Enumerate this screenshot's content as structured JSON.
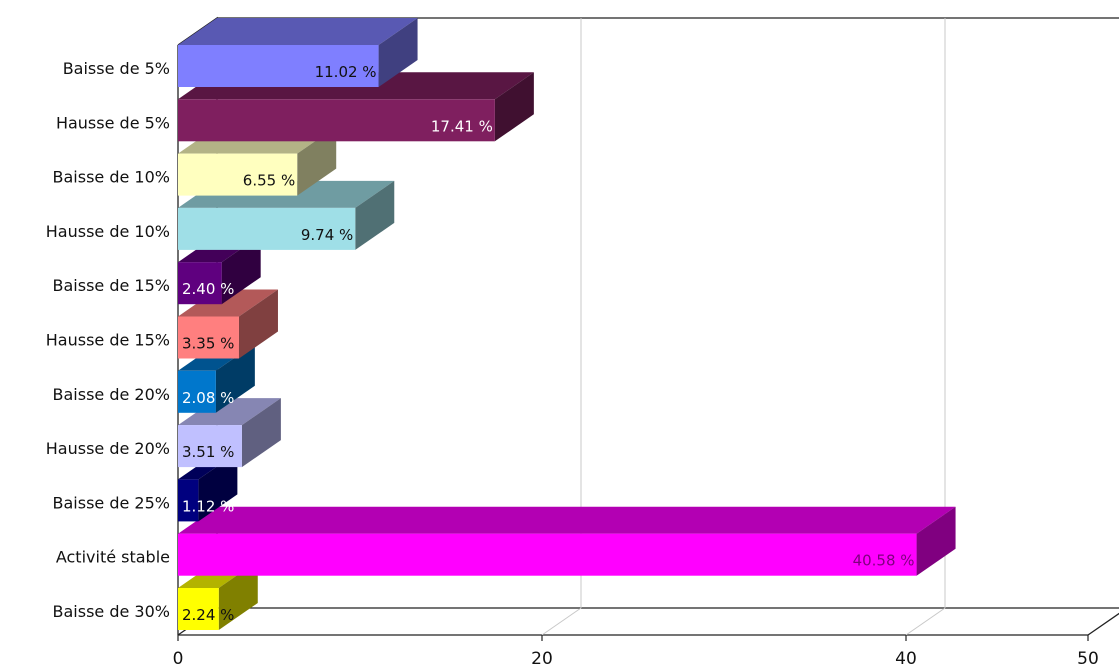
{
  "chart_data": {
    "type": "bar",
    "orientation": "horizontal",
    "style": "3d",
    "title": "",
    "xlabel": "",
    "ylabel": "",
    "xlim": [
      0,
      50
    ],
    "x_ticks": [
      "0",
      "20",
      "40",
      "50"
    ],
    "grid": true,
    "legend": "none",
    "categories": [
      "Baisse de 5%",
      "Hausse de 5%",
      "Baisse de 10%",
      "Hausse de 10%",
      "Baisse de 15%",
      "Hausse de 15%",
      "Baisse de 20%",
      "Hausse de 20%",
      "Baisse de 25%",
      "Activité stable",
      "Baisse de 30%"
    ],
    "values": [
      11.02,
      17.41,
      6.55,
      9.74,
      2.4,
      3.35,
      2.08,
      3.51,
      1.12,
      40.58,
      2.24
    ],
    "value_labels": [
      "11.02 %",
      "17.41 %",
      "6.55 %",
      "9.74 %",
      "2.40 %",
      "3.35 %",
      "2.08 %",
      "3.51 %",
      "1.12 %",
      "40.58 %",
      "2.24 %"
    ],
    "colors": [
      "#7f7fff",
      "#7f1f5f",
      "#ffffbf",
      "#9fdfe7",
      "#5f007f",
      "#ff7f7f",
      "#0077cc",
      "#c0c0ff",
      "#00007f",
      "#ff00ff",
      "#ffff00"
    ],
    "label_colors": [
      "#111111",
      "#ffffff",
      "#111111",
      "#111111",
      "#ffffff",
      "#111111",
      "#ffffff",
      "#111111",
      "#ffffff",
      "#7f007f",
      "#111111"
    ]
  }
}
